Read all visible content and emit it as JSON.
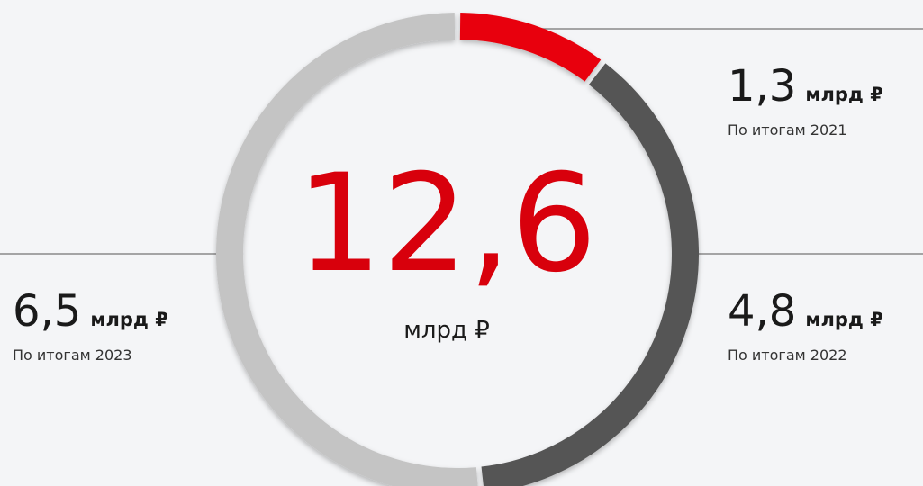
{
  "chart_data": {
    "type": "donut",
    "total": {
      "value": 12.6,
      "label": "12,6"
    },
    "unit": "млрд ₽",
    "categories": [
      "По итогам 2021",
      "По итогам 2022",
      "По итогам 2023"
    ],
    "values": [
      1.3,
      4.8,
      6.5
    ],
    "value_labels": [
      "1,3",
      "4,8",
      "6,5"
    ],
    "colors": [
      "#e8000d",
      "#555555",
      "#c4c4c4"
    ],
    "total_color": "#d8000c"
  }
}
